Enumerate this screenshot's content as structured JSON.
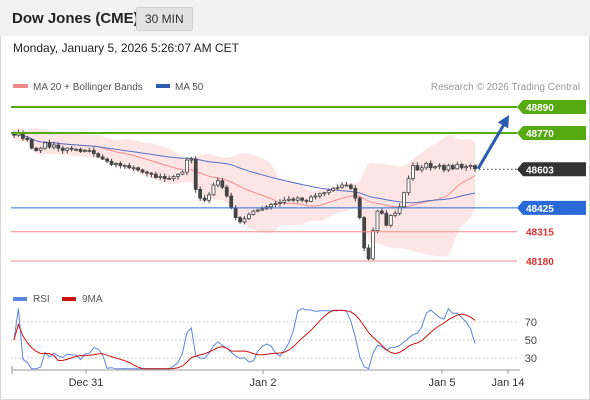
{
  "header": {
    "title": "Dow Jones (CME)",
    "interval": "30 MIN",
    "timestamp": "Monday, January 5, 2026 5:26:07 AM CET"
  },
  "credit": "Research © 2026 Trading Central",
  "colors": {
    "bullet": "#dd2222",
    "green": "#55aa11",
    "blue": "#2a6ad8",
    "red": "#f08a8a",
    "arrow": "#2a5db0",
    "candle": "#444444",
    "band": "#fde0e0",
    "ma20": "#f28c8c",
    "ma50": "#5570c8",
    "current": "#333333",
    "rsi": "#5a86e0",
    "rsi_ma": "#cc1111"
  },
  "chart_data": [
    {
      "type": "candlestick",
      "title": "Dow Jones (CME)",
      "interval": "30 MIN",
      "legend": [
        {
          "name": "MA 20 + Bollinger Bands",
          "color": "#f08a8a"
        },
        {
          "name": "MA 50",
          "color": "#2a5db0"
        }
      ],
      "x_ticks": [
        "Dec 31",
        "Jan 2",
        "Jan 5",
        "Jan 14"
      ],
      "ylim": [
        48050,
        48990
      ],
      "levels": [
        {
          "name": "target-2",
          "value": 48890,
          "label": "48890",
          "color": "#55aa11",
          "style": "filled"
        },
        {
          "name": "target-1",
          "value": 48770,
          "label": "48770",
          "color": "#55aa11",
          "style": "filled"
        },
        {
          "name": "current",
          "value": 48603,
          "label": "48603",
          "color": "#333333",
          "style": "dotted"
        },
        {
          "name": "pivot",
          "value": 48425,
          "label": "48425",
          "color": "#2a6ad8",
          "style": "filled"
        },
        {
          "name": "support-1",
          "value": 48315,
          "label": "48315",
          "color": "#f08a8a",
          "style": "text"
        },
        {
          "name": "support-2",
          "value": 48180,
          "label": "48180",
          "color": "#f08a8a",
          "style": "text"
        }
      ],
      "close": [
        48760,
        48770,
        48745,
        48740,
        48700,
        48690,
        48700,
        48725,
        48705,
        48715,
        48700,
        48690,
        48700,
        48695,
        48695,
        48685,
        48690,
        48690,
        48675,
        48660,
        48650,
        48640,
        48625,
        48630,
        48620,
        48620,
        48610,
        48610,
        48600,
        48590,
        48585,
        48580,
        48565,
        48570,
        48560,
        48560,
        48570,
        48580,
        48590,
        48645,
        48650,
        48510,
        48470,
        48460,
        48485,
        48530,
        48550,
        48520,
        48480,
        48425,
        48380,
        48360,
        48375,
        48395,
        48410,
        48415,
        48420,
        48430,
        48440,
        48445,
        48450,
        48460,
        48465,
        48460,
        48470,
        48460,
        48455,
        48475,
        48480,
        48490,
        48495,
        48505,
        48515,
        48520,
        48530,
        48530,
        48515,
        48470,
        48380,
        48240,
        48190,
        48320,
        48410,
        48400,
        48345,
        48390,
        48400,
        48430,
        48495,
        48560,
        48620,
        48600,
        48610,
        48630,
        48610,
        48615,
        48620,
        48600,
        48620,
        48605,
        48625,
        48610,
        48615,
        48620,
        48605
      ]
    },
    {
      "type": "line",
      "title": "RSI",
      "series": [
        {
          "name": "RSI",
          "color": "#5a86e0"
        },
        {
          "name": "9MA",
          "color": "#cc1111"
        }
      ],
      "y_ticks": [
        70,
        50,
        30
      ],
      "ylim": [
        10,
        90
      ]
    }
  ]
}
